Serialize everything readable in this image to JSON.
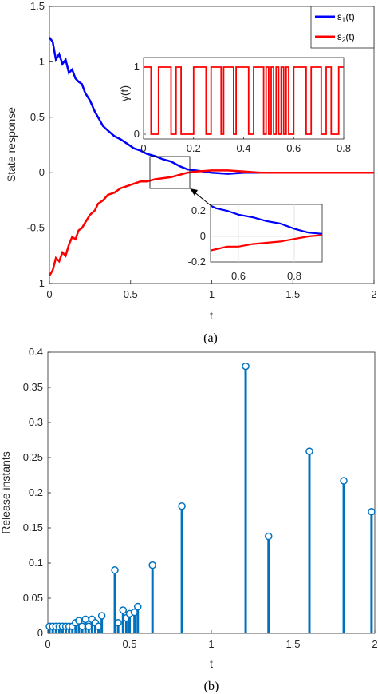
{
  "chart_data": [
    {
      "type": "line",
      "caption": "(a)",
      "xlabel": "t",
      "ylabel": "State response",
      "xlim": [
        0,
        2
      ],
      "ylim": [
        -1,
        1.5
      ],
      "xticks": [
        "0",
        "0.5",
        "1",
        "1.5",
        "2"
      ],
      "yticks": [
        "-1",
        "-0.5",
        "0",
        "0.5",
        "1",
        "1.5"
      ],
      "grid": false,
      "legend": "top-right",
      "series": [
        {
          "name": "ε1(t)",
          "color": "#0000ff",
          "x": [
            0,
            0.02,
            0.04,
            0.06,
            0.08,
            0.1,
            0.12,
            0.14,
            0.16,
            0.18,
            0.2,
            0.22,
            0.25,
            0.28,
            0.3,
            0.33,
            0.36,
            0.4,
            0.44,
            0.48,
            0.52,
            0.56,
            0.6,
            0.65,
            0.7,
            0.75,
            0.8,
            0.85,
            0.9,
            1.0,
            1.1,
            1.2,
            1.3,
            1.5,
            1.7,
            2.0
          ],
          "y": [
            1.22,
            1.18,
            1.02,
            1.07,
            0.98,
            1.02,
            0.9,
            0.93,
            0.85,
            0.82,
            0.8,
            0.72,
            0.65,
            0.55,
            0.5,
            0.42,
            0.38,
            0.33,
            0.3,
            0.26,
            0.22,
            0.2,
            0.17,
            0.15,
            0.12,
            0.1,
            0.06,
            0.03,
            0.02,
            0.0,
            -0.01,
            0.0,
            0.0,
            0.0,
            0.0,
            0.0
          ]
        },
        {
          "name": "ε2(t)",
          "color": "#ff0000",
          "x": [
            0,
            0.02,
            0.04,
            0.06,
            0.08,
            0.1,
            0.12,
            0.14,
            0.16,
            0.18,
            0.2,
            0.22,
            0.25,
            0.28,
            0.3,
            0.33,
            0.36,
            0.4,
            0.44,
            0.48,
            0.52,
            0.56,
            0.6,
            0.65,
            0.7,
            0.75,
            0.8,
            0.85,
            0.9,
            1.0,
            1.1,
            1.2,
            1.3,
            1.5,
            1.7,
            2.0
          ],
          "y": [
            -0.93,
            -0.88,
            -0.77,
            -0.8,
            -0.72,
            -0.75,
            -0.65,
            -0.58,
            -0.6,
            -0.52,
            -0.5,
            -0.45,
            -0.38,
            -0.34,
            -0.28,
            -0.25,
            -0.2,
            -0.18,
            -0.14,
            -0.12,
            -0.1,
            -0.08,
            -0.08,
            -0.06,
            -0.05,
            -0.04,
            -0.02,
            0.0,
            0.01,
            0.02,
            0.02,
            0.01,
            0.0,
            0.0,
            0.0,
            0.0
          ]
        }
      ],
      "inset_switching": {
        "ylabel": "γ(t)",
        "xlim": [
          0,
          0.8
        ],
        "ylim": [
          0,
          1
        ],
        "xticks": [
          "0",
          "0.2",
          "0.4",
          "0.6",
          "0.8"
        ],
        "yticks": [
          "0",
          "1"
        ],
        "color": "#ff0000",
        "switch_times": [
          0.03,
          0.06,
          0.11,
          0.13,
          0.15,
          0.2,
          0.25,
          0.27,
          0.31,
          0.32,
          0.36,
          0.37,
          0.42,
          0.44,
          0.48,
          0.49,
          0.5,
          0.51,
          0.52,
          0.53,
          0.54,
          0.55,
          0.56,
          0.57,
          0.58,
          0.6,
          0.65,
          0.67,
          0.71,
          0.73,
          0.75,
          0.78
        ],
        "initial_value": 1
      },
      "inset_zoom": {
        "xlim": [
          0.5,
          0.9
        ],
        "ylim": [
          -0.2,
          0.25
        ],
        "xticks": [
          "0.6",
          "0.8"
        ],
        "yticks": [
          "0.2",
          "0",
          "-0.2"
        ],
        "series_ref": [
          "ε1(t)",
          "ε2(t)"
        ]
      }
    },
    {
      "type": "stem",
      "caption": "(b)",
      "xlabel": "t",
      "ylabel": "Release instants",
      "xlim": [
        0,
        2
      ],
      "ylim": [
        0,
        0.4
      ],
      "xticks": [
        "0",
        "0.5",
        "1",
        "1.5",
        "2"
      ],
      "yticks": [
        "0",
        "0.05",
        "0.1",
        "0.15",
        "0.2",
        "0.25",
        "0.3",
        "0.35",
        "0.4"
      ],
      "color": "#0072bd",
      "x": [
        0.01,
        0.03,
        0.05,
        0.07,
        0.09,
        0.11,
        0.13,
        0.15,
        0.17,
        0.19,
        0.21,
        0.23,
        0.25,
        0.27,
        0.29,
        0.31,
        0.33,
        0.41,
        0.43,
        0.46,
        0.48,
        0.5,
        0.53,
        0.55,
        0.64,
        0.82,
        1.21,
        1.35,
        1.6,
        1.81,
        1.98
      ],
      "values": [
        0.01,
        0.01,
        0.01,
        0.01,
        0.01,
        0.01,
        0.01,
        0.01,
        0.015,
        0.018,
        0.01,
        0.02,
        0.01,
        0.02,
        0.015,
        0.01,
        0.025,
        0.09,
        0.015,
        0.033,
        0.022,
        0.028,
        0.03,
        0.038,
        0.097,
        0.181,
        0.38,
        0.138,
        0.259,
        0.217,
        0.173
      ]
    }
  ],
  "legend": {
    "e1_base": "ε",
    "e1_sub": "1",
    "e1_tail": "(t)",
    "e2_base": "ε",
    "e2_sub": "2",
    "e2_tail": "(t)"
  },
  "inset_ylabel": "γ(t)"
}
